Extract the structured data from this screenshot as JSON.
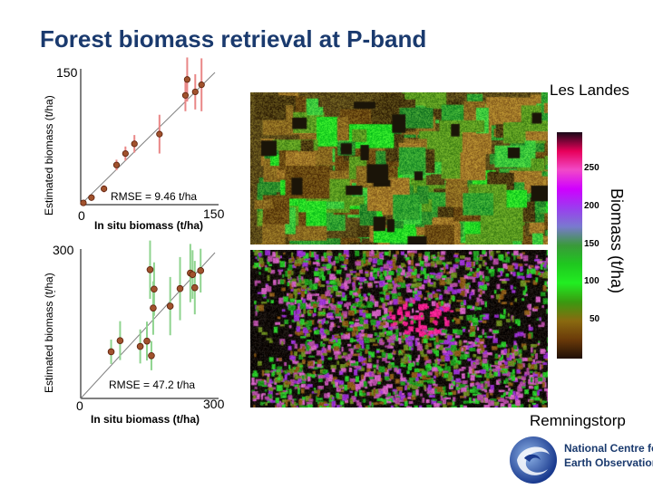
{
  "title": "Forest biomass retrieval at P-band",
  "colors": {
    "title": "#1a3a6e",
    "point_fill": "#a0522d",
    "point_stroke": "#5a1e0a",
    "errorbar_top": "#e98787",
    "errorbar_bottom": "#8fd48f",
    "fit_line": "#808080"
  },
  "chart_data": [
    {
      "type": "scatter",
      "site": "Les Landes",
      "ylabel": "Estimated biomass (t/ha)",
      "xlabel": "In situ biomass (t/ha)",
      "xtick_labels": [
        "0",
        "150"
      ],
      "ytick_labels": [
        "150"
      ],
      "xlim": [
        0,
        150
      ],
      "ylim": [
        0,
        150
      ],
      "annotation": "RMSE = 9.46 t/ha",
      "fit_line": [
        [
          0,
          0
        ],
        [
          150,
          150
        ]
      ],
      "points": [
        {
          "x": 3,
          "y": 2,
          "err": 1
        },
        {
          "x": 12,
          "y": 8,
          "err": 2
        },
        {
          "x": 26,
          "y": 18,
          "err": 4
        },
        {
          "x": 40,
          "y": 45,
          "err": 6
        },
        {
          "x": 50,
          "y": 58,
          "err": 8
        },
        {
          "x": 60,
          "y": 69,
          "err": 10
        },
        {
          "x": 88,
          "y": 80,
          "err": 22
        },
        {
          "x": 117,
          "y": 124,
          "err": 18
        },
        {
          "x": 119,
          "y": 142,
          "err": 25
        },
        {
          "x": 128,
          "y": 128,
          "err": 20
        },
        {
          "x": 135,
          "y": 136,
          "err": 30
        }
      ]
    },
    {
      "type": "scatter",
      "site": "Remningstorp",
      "ylabel": "Estimated biomass (t/ha)",
      "ylabel_extra": ",",
      "xlabel": "In situ biomass (t/ha)",
      "xtick_labels": [
        "0",
        "300"
      ],
      "ytick_labels": [
        "300"
      ],
      "xlim": [
        0,
        300
      ],
      "ylim": [
        0,
        300
      ],
      "annotation": "RMSE = 47.2 t/ha",
      "fit_line": [
        [
          0,
          0
        ],
        [
          300,
          300
        ]
      ],
      "points": [
        {
          "x": 68,
          "y": 96,
          "err": 25
        },
        {
          "x": 88,
          "y": 119,
          "err": 40
        },
        {
          "x": 133,
          "y": 107,
          "err": 35
        },
        {
          "x": 148,
          "y": 118,
          "err": 40
        },
        {
          "x": 158,
          "y": 88,
          "err": 30
        },
        {
          "x": 155,
          "y": 265,
          "err": 60
        },
        {
          "x": 162,
          "y": 186,
          "err": 55
        },
        {
          "x": 164,
          "y": 225,
          "err": 55
        },
        {
          "x": 200,
          "y": 190,
          "err": 60
        },
        {
          "x": 222,
          "y": 226,
          "err": 65
        },
        {
          "x": 245,
          "y": 258,
          "err": 60
        },
        {
          "x": 250,
          "y": 255,
          "err": 50
        },
        {
          "x": 255,
          "y": 228,
          "err": 55
        },
        {
          "x": 268,
          "y": 263,
          "err": 45
        }
      ]
    }
  ],
  "maps": {
    "top_site": "Les Landes",
    "bottom_site": "Remningstorp"
  },
  "colorbar": {
    "label": "Biomass (t/ha)",
    "ticks": [
      "250",
      "200",
      "150",
      "100",
      "50"
    ],
    "colors_top_to_bottom": [
      "#1a0a18",
      "#e8005a",
      "#f24ac8",
      "#d000ff",
      "#9c3cf0",
      "#7a7ad0",
      "#3a9a3a",
      "#1fc81f",
      "#22ee22",
      "#3a9a10",
      "#8a6a10",
      "#6a3a0a",
      "#201006"
    ]
  },
  "logo": {
    "line1": "National Centre for",
    "line2": "Earth Observation"
  }
}
